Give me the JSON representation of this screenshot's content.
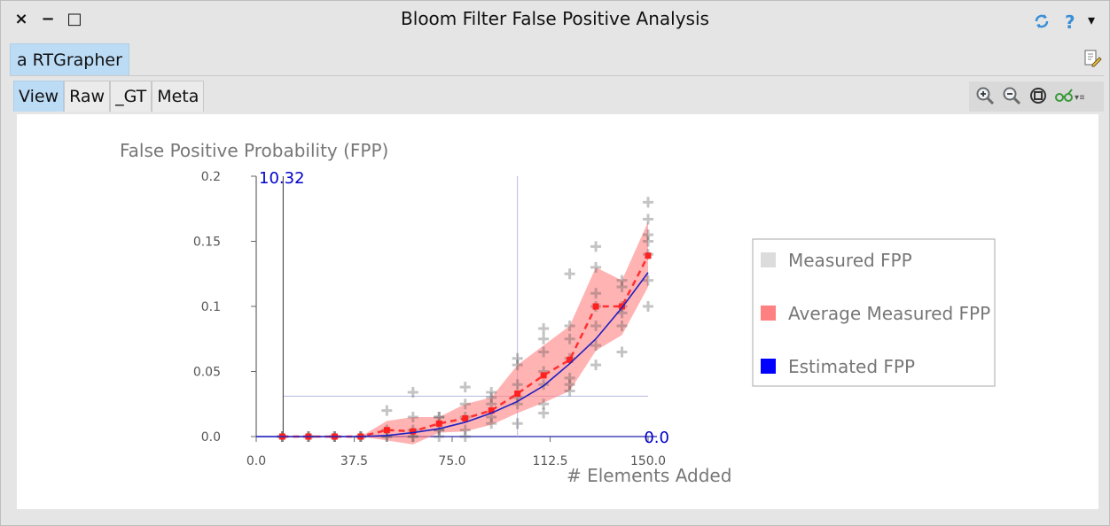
{
  "window": {
    "title": "Bloom Filter False Positive Analysis",
    "close_glyph": "×",
    "minimize_glyph": "−",
    "maximize_glyph": "□",
    "refresh_icon": "refresh-icon",
    "help_glyph": "?",
    "menu_glyph": "▾"
  },
  "outer_tab": {
    "label": "a RTGrapher"
  },
  "inspector": {
    "tabs": [
      "View",
      "Raw",
      "_GT",
      "Meta"
    ],
    "active_tab": "View",
    "tools": [
      "zoom-in-icon",
      "zoom-out-icon",
      "zoom-fit-icon",
      "glasses-icon"
    ],
    "menu_glyph": "▾≡"
  },
  "colors": {
    "avg": "#ff8080",
    "estimated": "#0000ff",
    "measured": "#dcdcdc",
    "accent": "#bcdcf6"
  },
  "chart_data": {
    "type": "scatter",
    "ylabel": "False Positive Probability (FPP)",
    "xlabel": "# Elements Added",
    "xlim": [
      0,
      150
    ],
    "ylim": [
      0,
      0.2
    ],
    "x_ticks": [
      "0.0",
      "37.5",
      "75.0",
      "112.5",
      "150.0"
    ],
    "x_tick_values": [
      0,
      37.5,
      75,
      112.5,
      150
    ],
    "y_ticks": [
      "0.0",
      "0.05",
      "0.1",
      "0.15",
      "0.2"
    ],
    "y_tick_values": [
      0,
      0.05,
      0.1,
      0.15,
      0.2
    ],
    "annotations": {
      "x_marker_label": "10.32",
      "x_marker_value": 10.32,
      "y_zero_label": "0.0",
      "crosshair_x": 100,
      "crosshair_y": 0.031
    },
    "legend": {
      "position": "right",
      "entries": [
        {
          "label": "Measured FPP",
          "color": "#dcdcdc"
        },
        {
          "label": "Average Measured FPP",
          "color": "#ff8080"
        },
        {
          "label": "Estimated FPP",
          "color": "#0000ff"
        }
      ]
    },
    "series": [
      {
        "name": "Measured FPP",
        "points": [
          [
            10,
            0
          ],
          [
            10,
            0
          ],
          [
            10,
            0
          ],
          [
            20,
            0
          ],
          [
            20,
            0
          ],
          [
            20,
            0
          ],
          [
            30,
            0
          ],
          [
            30,
            0
          ],
          [
            30,
            0
          ],
          [
            40,
            0
          ],
          [
            40,
            0
          ],
          [
            40,
            0
          ],
          [
            50,
            0.02
          ],
          [
            50,
            0
          ],
          [
            50,
            0
          ],
          [
            50,
            0.005
          ],
          [
            60,
            0.034
          ],
          [
            60,
            0.015
          ],
          [
            60,
            0.005
          ],
          [
            60,
            0
          ],
          [
            60,
            0
          ],
          [
            70,
            0.015
          ],
          [
            70,
            0.015
          ],
          [
            70,
            0.005
          ],
          [
            70,
            0
          ],
          [
            70,
            0.005
          ],
          [
            80,
            0.038
          ],
          [
            80,
            0.025
          ],
          [
            80,
            0.015
          ],
          [
            80,
            0.005
          ],
          [
            80,
            0
          ],
          [
            90,
            0.034
          ],
          [
            90,
            0.025
          ],
          [
            90,
            0.015
          ],
          [
            90,
            0.01
          ],
          [
            90,
            0.03
          ],
          [
            100,
            0.06
          ],
          [
            100,
            0.055
          ],
          [
            100,
            0.04
          ],
          [
            100,
            0.03
          ],
          [
            100,
            0.025
          ],
          [
            100,
            0.01
          ],
          [
            110,
            0.083
          ],
          [
            110,
            0.075
          ],
          [
            110,
            0.05
          ],
          [
            110,
            0.04
          ],
          [
            110,
            0.025
          ],
          [
            110,
            0.018
          ],
          [
            110,
            0.065
          ],
          [
            120,
            0.125
          ],
          [
            120,
            0.085
          ],
          [
            120,
            0.075
          ],
          [
            120,
            0.06
          ],
          [
            120,
            0.045
          ],
          [
            120,
            0.04
          ],
          [
            120,
            0.035
          ],
          [
            130,
            0.146
          ],
          [
            130,
            0.13
          ],
          [
            130,
            0.11
          ],
          [
            130,
            0.1
          ],
          [
            130,
            0.085
          ],
          [
            130,
            0.07
          ],
          [
            130,
            0.055
          ],
          [
            140,
            0.12
          ],
          [
            140,
            0.115
          ],
          [
            140,
            0.1
          ],
          [
            140,
            0.095
          ],
          [
            140,
            0.085
          ],
          [
            140,
            0.065
          ],
          [
            150,
            0.18
          ],
          [
            150,
            0.167
          ],
          [
            150,
            0.155
          ],
          [
            150,
            0.15
          ],
          [
            150,
            0.14
          ],
          [
            150,
            0.12
          ],
          [
            150,
            0.1
          ]
        ]
      },
      {
        "name": "Average Measured FPP",
        "x": [
          10,
          20,
          30,
          40,
          50,
          60,
          70,
          80,
          90,
          100,
          110,
          120,
          130,
          140,
          150
        ],
        "values": [
          0,
          0,
          0,
          0,
          0.005,
          0.004,
          0.01,
          0.014,
          0.02,
          0.033,
          0.047,
          0.059,
          0.1,
          0.1,
          0.139
        ],
        "upper": [
          0,
          0,
          0,
          0,
          0.012,
          0.015,
          0.015,
          0.025,
          0.03,
          0.055,
          0.07,
          0.085,
          0.13,
          0.12,
          0.165
        ],
        "lower": [
          0,
          0,
          0,
          0,
          -0.003,
          -0.006,
          0.003,
          0.004,
          0.009,
          0.018,
          0.026,
          0.035,
          0.066,
          0.078,
          0.115
        ]
      },
      {
        "name": "Estimated FPP",
        "x": [
          0,
          10,
          20,
          30,
          40,
          50,
          60,
          70,
          80,
          90,
          100,
          110,
          120,
          130,
          140,
          150
        ],
        "values": [
          0,
          0,
          0,
          0,
          0,
          0.0008,
          0.003,
          0.006,
          0.011,
          0.018,
          0.027,
          0.039,
          0.056,
          0.075,
          0.099,
          0.126
        ]
      }
    ]
  }
}
